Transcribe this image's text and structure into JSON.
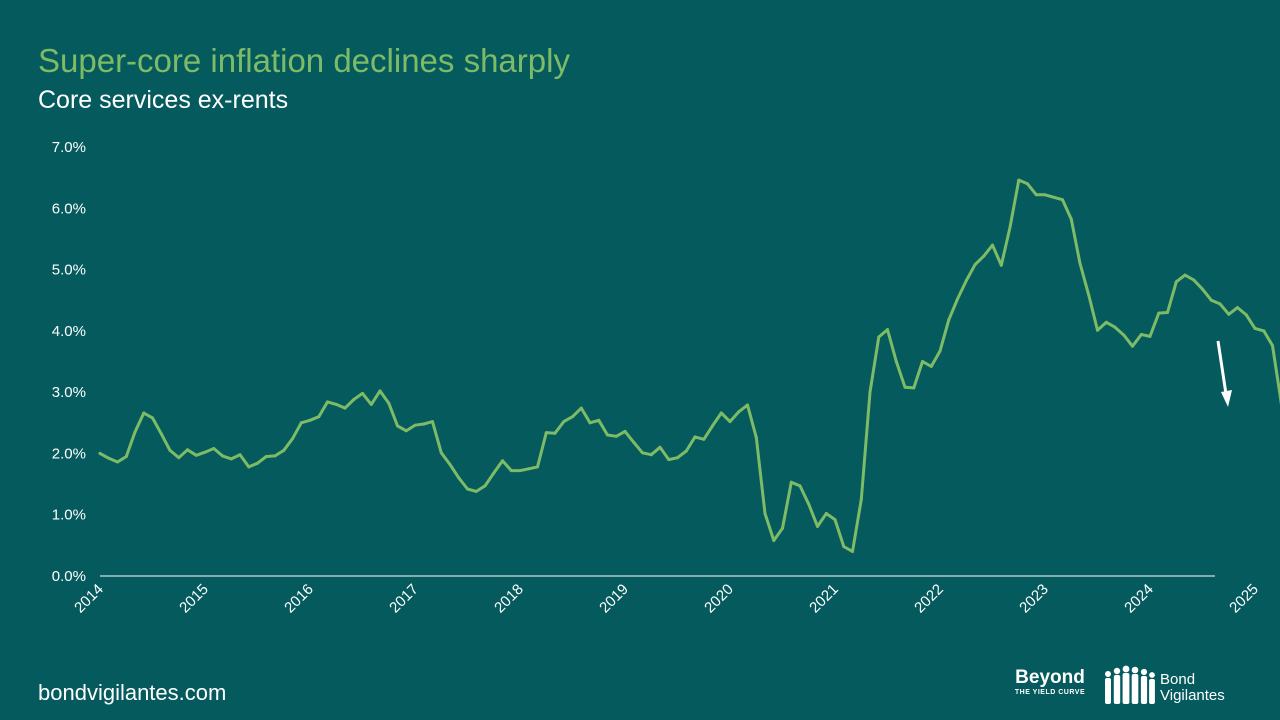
{
  "title": "Super-core inflation declines sharply",
  "subtitle": "Core services ex-rents",
  "footer": {
    "url": "bondvigilantes.com"
  },
  "logos": {
    "beyond_main": "Beyond",
    "beyond_sub": "THE YIELD CURVE",
    "bond": "Bond",
    "vigilantes": "Vigilantes"
  },
  "colors": {
    "background": "#055a5e",
    "line": "#7dbb66",
    "title": "#7dbb66",
    "text": "#ffffff",
    "arrow": "#ffffff"
  },
  "chart_data": {
    "type": "line",
    "ylim": [
      0,
      7
    ],
    "yticks": [
      "0.0%",
      "1.0%",
      "2.0%",
      "3.0%",
      "4.0%",
      "5.0%",
      "6.0%",
      "7.0%"
    ],
    "xticks": [
      "2014",
      "2015",
      "2016",
      "2017",
      "2018",
      "2019",
      "2020",
      "2021",
      "2022",
      "2023",
      "2024",
      "2025"
    ],
    "x_start": "2014-01",
    "x_end": "2025-03",
    "grid": false,
    "annotation": "down-arrow",
    "values": [
      2.0,
      1.92,
      1.86,
      1.95,
      2.35,
      2.66,
      2.58,
      2.32,
      2.05,
      1.93,
      2.06,
      1.97,
      2.02,
      2.08,
      1.96,
      1.91,
      1.98,
      1.78,
      1.84,
      1.95,
      1.96,
      2.05,
      2.24,
      2.5,
      2.54,
      2.6,
      2.84,
      2.8,
      2.74,
      2.88,
      2.98,
      2.8,
      3.02,
      2.82,
      2.45,
      2.37,
      2.46,
      2.48,
      2.52,
      2.01,
      1.82,
      1.6,
      1.42,
      1.38,
      1.47,
      1.68,
      1.88,
      1.72,
      1.72,
      1.75,
      1.78,
      2.34,
      2.33,
      2.52,
      2.6,
      2.74,
      2.5,
      2.54,
      2.3,
      2.28,
      2.36,
      2.18,
      2.01,
      1.98,
      2.1,
      1.9,
      1.93,
      2.04,
      2.27,
      2.23,
      2.45,
      2.66,
      2.52,
      2.68,
      2.79,
      2.26,
      1.02,
      0.58,
      0.78,
      1.53,
      1.47,
      1.17,
      0.81,
      1.02,
      0.92,
      0.48,
      0.4,
      1.25,
      3.0,
      3.9,
      4.02,
      3.5,
      3.08,
      3.07,
      3.5,
      3.42,
      3.67,
      4.18,
      4.52,
      4.82,
      5.08,
      5.22,
      5.4,
      5.07,
      5.69,
      6.46,
      6.4,
      6.22,
      6.22,
      6.18,
      6.14,
      5.82,
      5.1,
      4.58,
      4.01,
      4.14,
      4.06,
      3.93,
      3.75,
      3.94,
      3.91,
      4.29,
      4.3,
      4.8,
      4.91,
      4.83,
      4.68,
      4.5,
      4.44,
      4.27,
      4.38,
      4.26,
      4.04,
      4.0,
      3.76,
      2.82
    ]
  }
}
